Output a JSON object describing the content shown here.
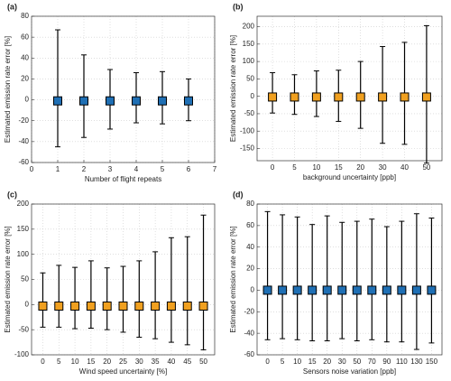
{
  "chart_data": [
    {
      "type": "errorbar",
      "label": "(a)",
      "xlabel": "Number of flight repeats",
      "ylabel": "Estimated emission rate error [%]",
      "x": [
        1,
        2,
        3,
        4,
        5,
        6
      ],
      "values": [
        -1,
        -1,
        -1,
        -1,
        -1,
        -1
      ],
      "upper": [
        67,
        43,
        29,
        26,
        27,
        20
      ],
      "lower": [
        -45,
        -36,
        -28,
        -22,
        -23,
        -20
      ],
      "color": "#1f6fb4",
      "xlim": [
        0,
        7
      ],
      "xticks": [
        0,
        1,
        2,
        3,
        4,
        5,
        6,
        7
      ],
      "ylim": [
        -60,
        80
      ],
      "yticks": [
        -60,
        -40,
        -20,
        0,
        20,
        40,
        60,
        80
      ],
      "grid": true
    },
    {
      "type": "errorbar",
      "label": "(b)",
      "xlabel": "background uncertainty [ppb]",
      "ylabel": "Estimated emission rate error [%]",
      "categories": [
        "0",
        "5",
        "10",
        "15",
        "20",
        "30",
        "40",
        "50"
      ],
      "values": [
        -2,
        -2,
        -2,
        -2,
        -2,
        -2,
        -2,
        -2
      ],
      "upper": [
        68,
        62,
        73,
        75,
        100,
        143,
        155,
        203
      ],
      "lower": [
        -48,
        -52,
        -58,
        -72,
        -92,
        -135,
        -138,
        -192
      ],
      "color": "#f0a020",
      "ylim": [
        -185,
        230
      ],
      "yticks": [
        -150,
        -100,
        -50,
        0,
        50,
        100,
        150,
        200
      ],
      "grid": true
    },
    {
      "type": "errorbar",
      "label": "(c)",
      "xlabel": "Wind speed uncertainty [%]",
      "ylabel": "Estimated emission rate error [%]",
      "categories": [
        "0",
        "5",
        "10",
        "15",
        "20",
        "25",
        "30",
        "35",
        "40",
        "45",
        "50"
      ],
      "values": [
        -3,
        -3,
        -3,
        -3,
        -3,
        -3,
        -3,
        -3,
        -3,
        -3,
        -3
      ],
      "upper": [
        63,
        78,
        74,
        87,
        73,
        76,
        87,
        105,
        133,
        135,
        178
      ],
      "lower": [
        -45,
        -45,
        -48,
        -47,
        -50,
        -55,
        -65,
        -68,
        -75,
        -80,
        -90
      ],
      "color": "#f0a020",
      "ylim": [
        -100,
        200
      ],
      "yticks": [
        -100,
        -50,
        0,
        50,
        100,
        150,
        200
      ],
      "grid": true
    },
    {
      "type": "errorbar",
      "label": "(d)",
      "xlabel": "Sensors noise variation [ppb]",
      "ylabel": "Estimated emission rate error [%]",
      "categories": [
        "0",
        "5",
        "10",
        "15",
        "20",
        "30",
        "50",
        "70",
        "90",
        "110",
        "130",
        "150"
      ],
      "values": [
        0,
        0,
        0,
        0,
        0,
        0,
        0,
        0,
        0,
        0,
        0,
        0
      ],
      "upper": [
        73,
        70,
        68,
        61,
        69,
        63,
        64,
        66,
        59,
        64,
        71,
        67
      ],
      "lower": [
        -46,
        -45,
        -46,
        -47,
        -47,
        -45,
        -47,
        -46,
        -48,
        -48,
        -55,
        -49
      ],
      "color": "#1f6fb4",
      "ylim": [
        -60,
        80
      ],
      "yticks": [
        -60,
        -40,
        -20,
        0,
        20,
        40,
        60,
        80
      ],
      "grid": true
    }
  ]
}
